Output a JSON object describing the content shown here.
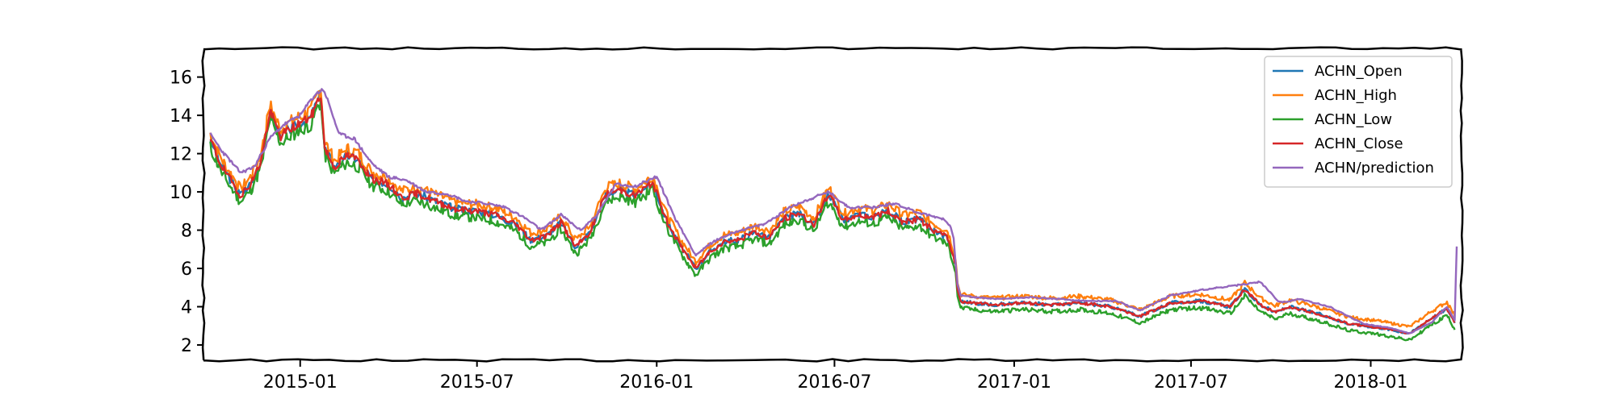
{
  "chart_data": {
    "type": "line",
    "title": "",
    "xlabel": "",
    "ylabel": "",
    "x_range": [
      "2014-09-24",
      "2018-04-04"
    ],
    "ylim": [
      1.2,
      17.5
    ],
    "grid": false,
    "legend_position": "top-right",
    "x_ticks": [
      {
        "date": "2015-01-01",
        "label": "2015-01"
      },
      {
        "date": "2015-07-01",
        "label": "2015-07"
      },
      {
        "date": "2016-01-01",
        "label": "2016-01"
      },
      {
        "date": "2016-07-01",
        "label": "2016-07"
      },
      {
        "date": "2017-01-01",
        "label": "2017-01"
      },
      {
        "date": "2017-07-01",
        "label": "2017-07"
      },
      {
        "date": "2018-01-01",
        "label": "2018-01"
      }
    ],
    "y_ticks": [
      {
        "value": 2,
        "label": "2"
      },
      {
        "value": 4,
        "label": "4"
      },
      {
        "value": 6,
        "label": "6"
      },
      {
        "value": 8,
        "label": "8"
      },
      {
        "value": 10,
        "label": "10"
      },
      {
        "value": 12,
        "label": "12"
      },
      {
        "value": 14,
        "label": "14"
      },
      {
        "value": 16,
        "label": "16"
      }
    ],
    "close_points": [
      [
        "2014-10-01",
        12.7
      ],
      [
        "2014-10-12",
        11.4
      ],
      [
        "2014-10-22",
        10.6
      ],
      [
        "2014-11-01",
        9.8
      ],
      [
        "2014-11-12",
        10.5
      ],
      [
        "2014-11-22",
        11.6
      ],
      [
        "2014-12-01",
        14.2
      ],
      [
        "2014-12-12",
        12.9
      ],
      [
        "2014-12-22",
        13.3
      ],
      [
        "2015-01-01",
        13.6
      ],
      [
        "2015-01-12",
        13.9
      ],
      [
        "2015-01-22",
        15.1
      ],
      [
        "2015-01-26",
        12.3
      ],
      [
        "2015-02-05",
        11.3
      ],
      [
        "2015-02-18",
        11.9
      ],
      [
        "2015-03-01",
        11.7
      ],
      [
        "2015-03-15",
        10.7
      ],
      [
        "2015-04-01",
        10.4
      ],
      [
        "2015-04-15",
        9.7
      ],
      [
        "2015-05-01",
        9.9
      ],
      [
        "2015-05-20",
        9.5
      ],
      [
        "2015-06-10",
        9.1
      ],
      [
        "2015-07-01",
        9.0
      ],
      [
        "2015-07-20",
        8.8
      ],
      [
        "2015-08-10",
        8.3
      ],
      [
        "2015-08-25",
        7.5
      ],
      [
        "2015-09-10",
        7.7
      ],
      [
        "2015-09-25",
        8.4
      ],
      [
        "2015-10-10",
        7.1
      ],
      [
        "2015-10-25",
        7.9
      ],
      [
        "2015-11-10",
        9.9
      ],
      [
        "2015-11-25",
        10.1
      ],
      [
        "2015-12-10",
        9.8
      ],
      [
        "2015-12-28",
        10.5
      ],
      [
        "2016-01-10",
        8.6
      ],
      [
        "2016-01-25",
        7.2
      ],
      [
        "2016-02-10",
        6.0
      ],
      [
        "2016-02-25",
        6.9
      ],
      [
        "2016-03-10",
        7.4
      ],
      [
        "2016-03-25",
        7.5
      ],
      [
        "2016-04-10",
        7.9
      ],
      [
        "2016-04-25",
        7.6
      ],
      [
        "2016-05-10",
        8.6
      ],
      [
        "2016-05-25",
        8.9
      ],
      [
        "2016-06-10",
        8.3
      ],
      [
        "2016-06-25",
        9.9
      ],
      [
        "2016-07-10",
        8.5
      ],
      [
        "2016-07-25",
        8.8
      ],
      [
        "2016-08-10",
        8.7
      ],
      [
        "2016-08-25",
        9.0
      ],
      [
        "2016-09-10",
        8.4
      ],
      [
        "2016-09-25",
        8.6
      ],
      [
        "2016-10-10",
        8.0
      ],
      [
        "2016-10-25",
        7.6
      ],
      [
        "2016-11-02",
        6.2
      ],
      [
        "2016-11-05",
        4.3
      ],
      [
        "2016-11-20",
        4.2
      ],
      [
        "2016-12-10",
        4.1
      ],
      [
        "2017-01-10",
        4.2
      ],
      [
        "2017-02-10",
        4.1
      ],
      [
        "2017-03-10",
        4.2
      ],
      [
        "2017-04-10",
        4.0
      ],
      [
        "2017-05-10",
        3.5
      ],
      [
        "2017-06-10",
        4.2
      ],
      [
        "2017-07-10",
        4.3
      ],
      [
        "2017-08-10",
        4.0
      ],
      [
        "2017-08-25",
        4.9
      ],
      [
        "2017-09-10",
        4.1
      ],
      [
        "2017-09-25",
        3.7
      ],
      [
        "2017-10-10",
        4.0
      ],
      [
        "2017-11-10",
        3.6
      ],
      [
        "2017-12-10",
        3.1
      ],
      [
        "2018-01-10",
        2.9
      ],
      [
        "2018-02-10",
        2.6
      ],
      [
        "2018-03-01",
        3.3
      ],
      [
        "2018-03-20",
        3.9
      ],
      [
        "2018-03-28",
        3.2
      ]
    ],
    "prediction_points": [
      [
        "2014-10-01",
        13.0
      ],
      [
        "2014-10-15",
        12.0
      ],
      [
        "2014-11-01",
        11.0
      ],
      [
        "2014-11-15",
        11.3
      ],
      [
        "2014-12-01",
        12.8
      ],
      [
        "2014-12-15",
        13.5
      ],
      [
        "2015-01-01",
        14.0
      ],
      [
        "2015-01-15",
        15.0
      ],
      [
        "2015-01-25",
        15.4
      ],
      [
        "2015-02-10",
        13.0
      ],
      [
        "2015-02-25",
        12.8
      ],
      [
        "2015-03-15",
        11.5
      ],
      [
        "2015-04-01",
        10.8
      ],
      [
        "2015-04-20",
        10.6
      ],
      [
        "2015-05-10",
        10.0
      ],
      [
        "2015-06-01",
        9.9
      ],
      [
        "2015-06-20",
        9.5
      ],
      [
        "2015-07-10",
        9.4
      ],
      [
        "2015-07-30",
        9.2
      ],
      [
        "2015-08-20",
        8.6
      ],
      [
        "2015-09-05",
        8.0
      ],
      [
        "2015-09-25",
        8.8
      ],
      [
        "2015-10-15",
        8.0
      ],
      [
        "2015-11-01",
        8.8
      ],
      [
        "2015-11-20",
        10.4
      ],
      [
        "2015-12-10",
        10.3
      ],
      [
        "2016-01-01",
        10.8
      ],
      [
        "2016-01-20",
        8.6
      ],
      [
        "2016-02-10",
        6.7
      ],
      [
        "2016-02-28",
        7.4
      ],
      [
        "2016-03-20",
        7.9
      ],
      [
        "2016-04-20",
        8.3
      ],
      [
        "2016-05-20",
        9.3
      ],
      [
        "2016-06-25",
        10.0
      ],
      [
        "2016-07-15",
        9.2
      ],
      [
        "2016-08-10",
        9.2
      ],
      [
        "2016-09-01",
        9.4
      ],
      [
        "2016-09-25",
        8.9
      ],
      [
        "2016-10-20",
        8.6
      ],
      [
        "2016-10-30",
        8.1
      ],
      [
        "2016-11-05",
        4.6
      ],
      [
        "2016-11-20",
        4.5
      ],
      [
        "2016-12-15",
        4.4
      ],
      [
        "2017-01-15",
        4.5
      ],
      [
        "2017-02-15",
        4.4
      ],
      [
        "2017-03-15",
        4.3
      ],
      [
        "2017-04-15",
        4.3
      ],
      [
        "2017-05-10",
        3.8
      ],
      [
        "2017-06-10",
        4.6
      ],
      [
        "2017-07-15",
        4.9
      ],
      [
        "2017-08-15",
        5.1
      ],
      [
        "2017-09-10",
        5.3
      ],
      [
        "2017-09-30",
        4.2
      ],
      [
        "2017-10-20",
        4.4
      ],
      [
        "2017-11-05",
        4.2
      ],
      [
        "2017-11-20",
        4.0
      ],
      [
        "2017-12-05",
        3.6
      ],
      [
        "2017-12-25",
        3.1
      ],
      [
        "2018-01-20",
        2.9
      ],
      [
        "2018-02-10",
        2.6
      ],
      [
        "2018-03-05",
        3.2
      ],
      [
        "2018-03-20",
        4.0
      ],
      [
        "2018-03-28",
        3.3
      ],
      [
        "2018-03-30",
        7.1
      ],
      [
        "2018-03-31",
        2.0
      ]
    ],
    "series": [
      {
        "name": "ACHN_Open",
        "color": "#1f77b4",
        "offset": 0.0,
        "noise": 0.18,
        "seed": 3
      },
      {
        "name": "ACHN_High",
        "color": "#ff7f0e",
        "offset": 0.35,
        "noise": 0.22,
        "seed": 7
      },
      {
        "name": "ACHN_Low",
        "color": "#2ca02c",
        "offset": -0.35,
        "noise": 0.22,
        "seed": 11
      },
      {
        "name": "ACHN_Close",
        "color": "#d62728",
        "offset": 0.0,
        "noise": 0.15,
        "seed": 19
      },
      {
        "name": "ACHN/prediction",
        "color": "#9467bd",
        "offset": 0.0,
        "noise": 0.06,
        "seed": 23
      }
    ]
  }
}
